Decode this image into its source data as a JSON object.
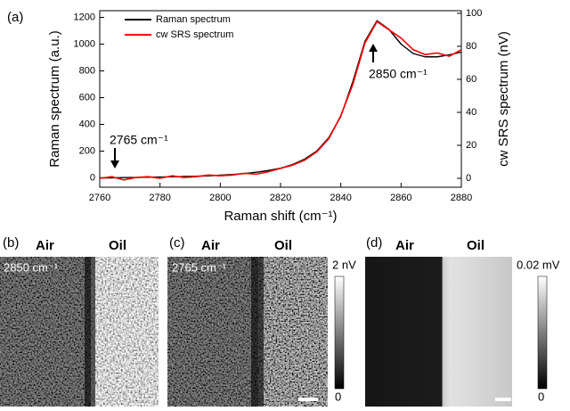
{
  "chart_data": {
    "type": "line",
    "panel_label": "(a)",
    "xlabel": "Raman shift (cm⁻¹)",
    "ylabel": "Raman spectrum (a.u.)",
    "y2label": "cw SRS spectrum (nV)",
    "x": [
      2760,
      2764,
      2768,
      2772,
      2776,
      2780,
      2784,
      2788,
      2792,
      2796,
      2800,
      2804,
      2808,
      2812,
      2816,
      2820,
      2824,
      2828,
      2832,
      2836,
      2840,
      2844,
      2848,
      2852,
      2856,
      2860,
      2864,
      2868,
      2872,
      2876,
      2880
    ],
    "series": [
      {
        "name": "Raman spectrum",
        "color": "#000000",
        "values": [
          0,
          0,
          2,
          3,
          5,
          6,
          8,
          10,
          12,
          15,
          20,
          25,
          32,
          42,
          55,
          72,
          100,
          140,
          200,
          300,
          460,
          720,
          1020,
          1175,
          1110,
          1000,
          930,
          905,
          905,
          920,
          940
        ]
      },
      {
        "name": "cw SRS spectrum",
        "color": "#ff0000",
        "axis": "y2",
        "values": [
          0,
          1,
          -1,
          0.5,
          1,
          0,
          1.5,
          0.5,
          1,
          2,
          1.5,
          2,
          3,
          2.5,
          4,
          6,
          8,
          11,
          16,
          24,
          38,
          57,
          82,
          95,
          90,
          85,
          78,
          75,
          76,
          74,
          78
        ]
      }
    ],
    "xlim": [
      2760,
      2880
    ],
    "xticks": [
      2760,
      2780,
      2800,
      2820,
      2840,
      2860,
      2880
    ],
    "ylim": [
      -70,
      1250
    ],
    "yticks": [
      0,
      200,
      400,
      600,
      800,
      1000,
      1200
    ],
    "y2lim": [
      -5.4,
      101.6
    ],
    "y2ticks": [
      0,
      20,
      40,
      60,
      80,
      100
    ],
    "annotations": [
      {
        "text": "2765 cm⁻¹",
        "x": 2765
      },
      {
        "text": "2850 cm⁻¹",
        "x": 2850
      }
    ],
    "legend": "upper left"
  },
  "panels": [
    {
      "label": "(b)",
      "left": "Air",
      "right": "Oil",
      "note": "2850 cm⁻¹"
    },
    {
      "label": "(c)",
      "left": "Air",
      "right": "Oil",
      "note": "2765 cm⁻¹",
      "scale_max": "2 nV",
      "scale_min": "0"
    },
    {
      "label": "(d)",
      "left": "Air",
      "right": "Oil",
      "scale_max": "0.02 mV",
      "scale_min": "0"
    }
  ]
}
